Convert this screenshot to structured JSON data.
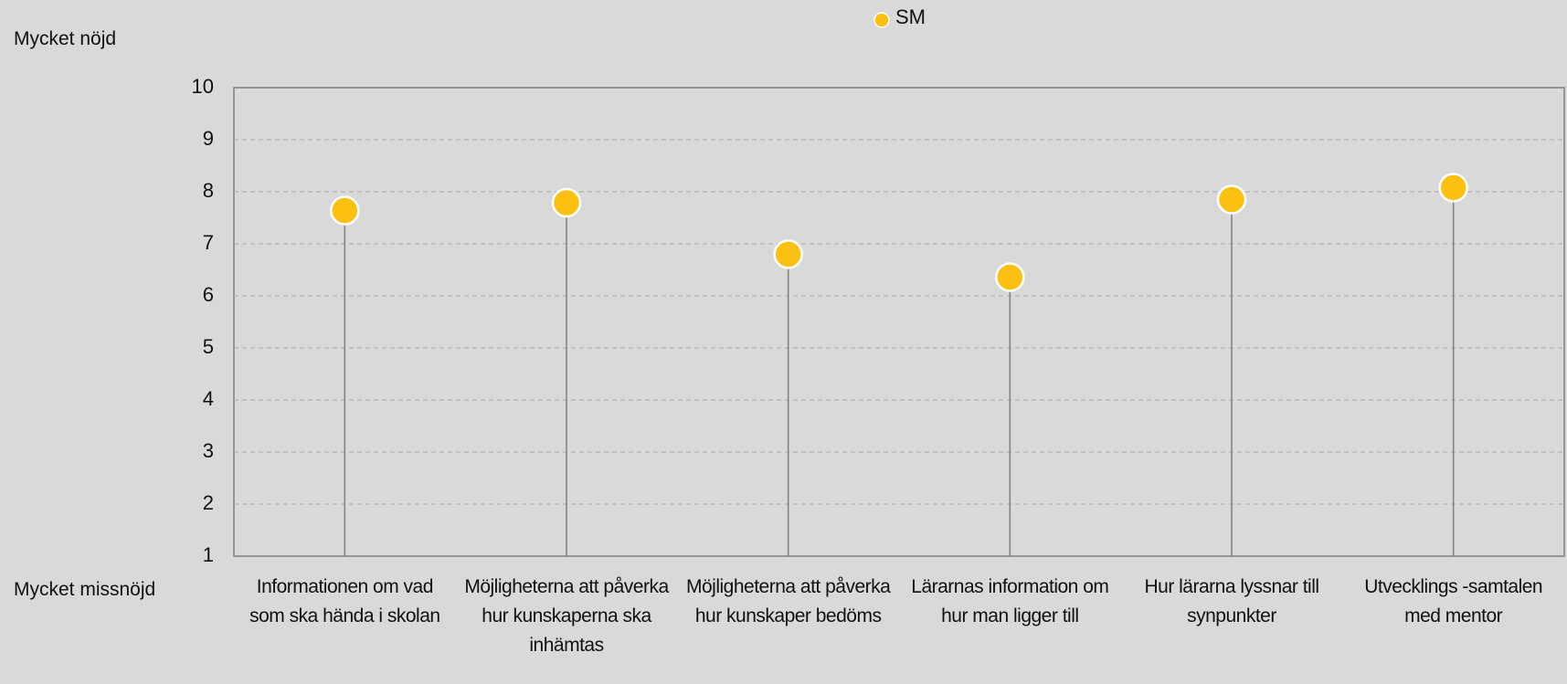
{
  "chart_data": {
    "type": "lollipop",
    "annotations": {
      "top": "Mycket nöjd",
      "bottom": "Mycket missnöjd"
    },
    "categories": [
      "Informationen om vad som ska hända i skolan",
      "Möjligheterna att påverka hur kunskaperna ska inhämtas",
      "Möjligheterna att påverka hur kunskaper bedöms",
      "Lärarnas information om hur man ligger till",
      "Hur lärarna lyssnar till synpunkter",
      "Utvecklings -samtalen med mentor"
    ],
    "series": [
      {
        "name": "SM",
        "color": "#fcc012",
        "values": [
          7.64,
          7.79,
          6.8,
          6.36,
          7.85,
          8.08
        ]
      }
    ],
    "ylim": [
      1,
      10
    ],
    "yticks": [
      1,
      2,
      3,
      4,
      5,
      6,
      7,
      8,
      9,
      10
    ],
    "grid": true,
    "legend": "top"
  }
}
